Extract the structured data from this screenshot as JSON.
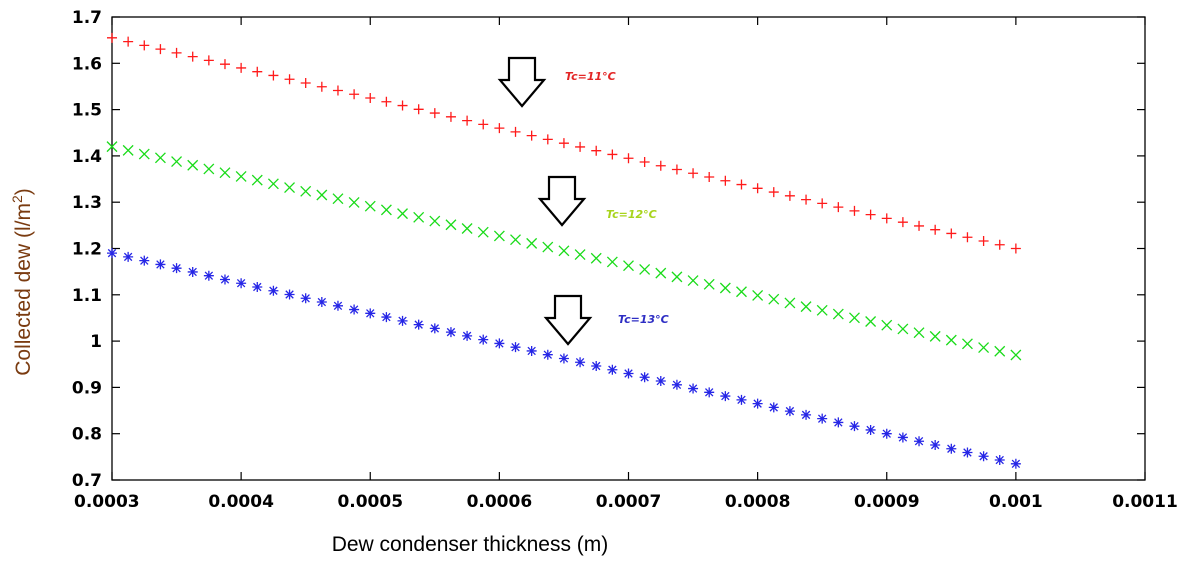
{
  "chart_data": {
    "type": "scatter",
    "xlabel": "Dew condenser thickness (m)",
    "ylabel_main": "Collected dew (l/m",
    "ylabel_sup": "2",
    "ylabel_close": ")",
    "xlim": [
      0.0003,
      0.0011
    ],
    "ylim": [
      0.7,
      1.7
    ],
    "xticks": [
      0.0003,
      0.0004,
      0.0005,
      0.0006,
      0.0007,
      0.0008,
      0.0009,
      0.001,
      0.0011
    ],
    "xtick_labels": [
      "0.0003",
      "0.0004",
      "0.0005",
      "0.0006",
      "0.0007",
      "0.0008",
      "0.0009",
      "0.001",
      "0.0011"
    ],
    "yticks": [
      0.7,
      0.8,
      0.9,
      1.0,
      1.1,
      1.2,
      1.3,
      1.4,
      1.5,
      1.6,
      1.7
    ],
    "ytick_labels": [
      "0.7",
      "0.8",
      "0.9",
      "1",
      "1.1",
      "1.2",
      "1.3",
      "1.4",
      "1.5",
      "1.6",
      "1.7"
    ],
    "grid": false,
    "points_per_series": 57,
    "series": [
      {
        "name": "Tc=11°C",
        "marker": "plus",
        "color": "#ff1a1a",
        "x_start": 0.0003,
        "x_end": 0.001,
        "y_start": 1.655,
        "y_end": 1.2
      },
      {
        "name": "Tc=12°C",
        "marker": "x",
        "color": "#1adb1a",
        "x_start": 0.0003,
        "x_end": 0.001,
        "y_start": 1.42,
        "y_end": 0.97
      },
      {
        "name": "Tc=13°C",
        "marker": "star",
        "color": "#2626e6",
        "x_start": 0.0003,
        "x_end": 0.001,
        "y_start": 1.19,
        "y_end": 0.735
      }
    ],
    "annotations": [
      {
        "text": "Tc=11°C",
        "color": "#e32626",
        "arrow": "down"
      },
      {
        "text": "Tc=12°C",
        "color": "#a8d41c",
        "arrow": "down"
      },
      {
        "text": "Tc=13°C",
        "color": "#2e2ec4",
        "arrow": "down"
      }
    ],
    "colors": {
      "axis": "#000000",
      "axis_title": "#7a3b10"
    }
  }
}
